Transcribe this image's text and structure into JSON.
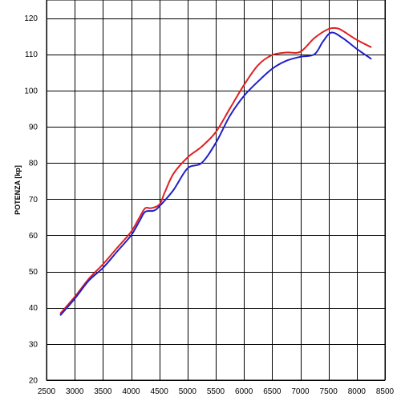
{
  "chart_data": {
    "type": "line",
    "title": "",
    "xlabel": "",
    "ylabel": "POTENZA [kp]",
    "xlim": [
      2500,
      8500
    ],
    "ylim": [
      20,
      125
    ],
    "x_ticks": [
      2500,
      3000,
      3500,
      4000,
      4500,
      5000,
      5500,
      6000,
      6500,
      7000,
      7500,
      8000,
      8500
    ],
    "y_ticks": [
      20,
      30,
      40,
      50,
      60,
      70,
      80,
      90,
      100,
      110,
      120
    ],
    "x_tick_labels": [
      "2500",
      "3000",
      "3500",
      "4000",
      "4500",
      "5000",
      "5500",
      "6000",
      "6500",
      "7000",
      "7500",
      "8000",
      "8500"
    ],
    "y_tick_labels": [
      "20",
      "30",
      "40",
      "50",
      "60",
      "70",
      "80",
      "90",
      "100",
      "110",
      "120"
    ],
    "grid": true,
    "series": [
      {
        "color": "#e02020",
        "x": [
          2750,
          3000,
          3250,
          3500,
          3750,
          4000,
          4150,
          4250,
          4350,
          4500,
          4600,
          4750,
          5000,
          5250,
          5500,
          5750,
          6000,
          6250,
          6500,
          6750,
          7000,
          7250,
          7500,
          7650,
          7750,
          8000,
          8250
        ],
        "y": [
          38.5,
          43,
          48,
          52,
          56.5,
          61,
          65,
          67.5,
          67.5,
          68.5,
          72,
          77,
          81.5,
          84.5,
          88.5,
          95,
          101.5,
          107,
          109.8,
          110.5,
          110.7,
          114.5,
          117,
          117.2,
          116.5,
          114,
          112
        ]
      },
      {
        "color": "#2020c8",
        "x": [
          2750,
          3000,
          3250,
          3500,
          3750,
          4000,
          4150,
          4250,
          4400,
          4500,
          4750,
          5000,
          5250,
          5500,
          5750,
          6000,
          6250,
          6500,
          6750,
          7000,
          7250,
          7400,
          7550,
          7750,
          8000,
          8250
        ],
        "y": [
          38,
          42.5,
          47.5,
          51,
          55.5,
          60,
          64,
          66.5,
          66.8,
          68,
          72.5,
          78.5,
          80,
          85.5,
          93,
          98.5,
          102.5,
          106,
          108.2,
          109.3,
          110,
          113.5,
          116,
          114.5,
          111.5,
          108.8
        ]
      }
    ]
  }
}
